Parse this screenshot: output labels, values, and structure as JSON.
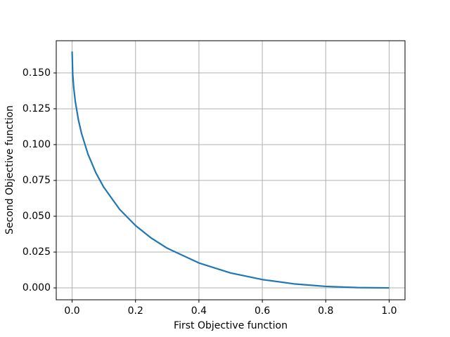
{
  "chart_data": {
    "type": "line",
    "x_label": "First Objective function",
    "y_label": "Second Objective function",
    "x": [
      0,
      0.002,
      0.005,
      0.01,
      0.02,
      0.03,
      0.05,
      0.075,
      0.1,
      0.15,
      0.2,
      0.25,
      0.3,
      0.4,
      0.5,
      0.6,
      0.7,
      0.8,
      0.9,
      1.0
    ],
    "series": [
      {
        "color": "#1f77b4",
        "values": [
          0.165,
          0.1489,
          0.1399,
          0.1302,
          0.1171,
          0.1076,
          0.0934,
          0.0803,
          0.0702,
          0.0548,
          0.0435,
          0.0347,
          0.0277,
          0.0174,
          0.0104,
          0.0058,
          0.0028,
          0.00105,
          0.0002,
          0
        ]
      }
    ],
    "xlim": [
      -0.05,
      1.05
    ],
    "ylim": [
      -0.0083,
      0.1725
    ],
    "xticks": [
      {
        "value": 0,
        "label": "0.0"
      },
      {
        "value": 0.2,
        "label": "0.2"
      },
      {
        "value": 0.4,
        "label": "0.4"
      },
      {
        "value": 0.6,
        "label": "0.6"
      },
      {
        "value": 0.8,
        "label": "0.8"
      },
      {
        "value": 1,
        "label": "1.0"
      }
    ],
    "yticks": [
      {
        "value": 0,
        "label": "0.000"
      },
      {
        "value": 0.025,
        "label": "0.025"
      },
      {
        "value": 0.05,
        "label": "0.050"
      },
      {
        "value": 0.075,
        "label": "0.075"
      },
      {
        "value": 0.1,
        "label": "0.100"
      },
      {
        "value": 0.125,
        "label": "0.125"
      },
      {
        "value": 0.15,
        "label": "0.150"
      }
    ],
    "grid": true
  }
}
